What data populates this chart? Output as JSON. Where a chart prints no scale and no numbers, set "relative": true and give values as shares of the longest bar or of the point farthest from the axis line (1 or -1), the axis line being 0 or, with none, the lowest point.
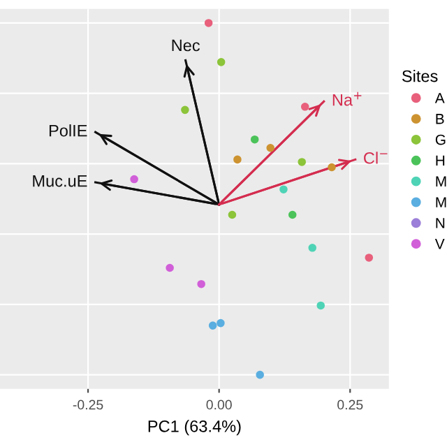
{
  "chart_data": {
    "type": "scatter",
    "xlabel": "PC1 (63.4%)",
    "legend_title": "Sites",
    "legend": "right",
    "relative": true,
    "grid": true,
    "tick_labels": "x",
    "marker": "circle",
    "xlim": [
      -0.418,
      0.324
    ],
    "xticks": [
      {
        "value": -0.25,
        "label": "-0.25"
      },
      {
        "value": 0,
        "label": "0.00"
      },
      {
        "value": 0.25,
        "label": "0.25"
      }
    ],
    "series": [
      {
        "name": "A",
        "color": "#e8607c",
        "x": [
          -0.02,
          0.164,
          0.286
        ],
        "values": [
          1.0,
          0.762,
          0.333
        ]
      },
      {
        "name": "B",
        "color": "#cd9331",
        "x": [
          0.098,
          0.035,
          0.215
        ],
        "values": [
          0.645,
          0.612,
          0.59
        ]
      },
      {
        "name": "G",
        "color": "#8cc43a",
        "x": [
          0.004,
          -0.065,
          0.158,
          0.025
        ],
        "values": [
          0.889,
          0.753,
          0.605,
          0.455
        ]
      },
      {
        "name": "H",
        "color": "#4cc35a",
        "x": [
          0.068,
          0.14
        ],
        "values": [
          0.669,
          0.455
        ]
      },
      {
        "name": "M",
        "color": "#4fd3b6",
        "x": [
          0.123,
          0.178,
          0.194
        ],
        "values": [
          0.527,
          0.361,
          0.197
        ]
      },
      {
        "name": "M",
        "color": "#5aaee0",
        "x": [
          -0.012,
          0.003,
          0.078
        ],
        "values": [
          0.14,
          0.147,
          0.0
        ]
      },
      {
        "name": "N",
        "color": "#9b7fd8"
      },
      {
        "name": "V",
        "color": "#d15fd8",
        "x": [
          -0.162,
          -0.094,
          -0.034
        ],
        "values": [
          0.556,
          0.304,
          0.258
        ]
      },
      {
        "type": "line",
        "name": "Nec",
        "marker": "none",
        "color": "#111111",
        "x": [
          0,
          -0.064
        ],
        "values": [
          0.484,
          0.894
        ]
      },
      {
        "type": "line",
        "name": "PolIE",
        "marker": "none",
        "color": "#111111",
        "x": [
          0,
          -0.236
        ],
        "values": [
          0.484,
          0.69
        ]
      },
      {
        "type": "line",
        "name": "Muc.uE",
        "marker": "none",
        "color": "#111111",
        "x": [
          0,
          -0.236
        ],
        "values": [
          0.484,
          0.547
        ]
      },
      {
        "type": "line",
        "name": "Na$^{+}$",
        "marker": "none",
        "color": "#d42d4f",
        "x": [
          0,
          0.2
        ],
        "values": [
          0.484,
          0.777
        ]
      },
      {
        "type": "line",
        "name": "Cl$^{−}$",
        "marker": "none",
        "color": "#d42d4f",
        "x": [
          0,
          0.26
        ],
        "values": [
          0.484,
          0.612
        ]
      }
    ]
  }
}
